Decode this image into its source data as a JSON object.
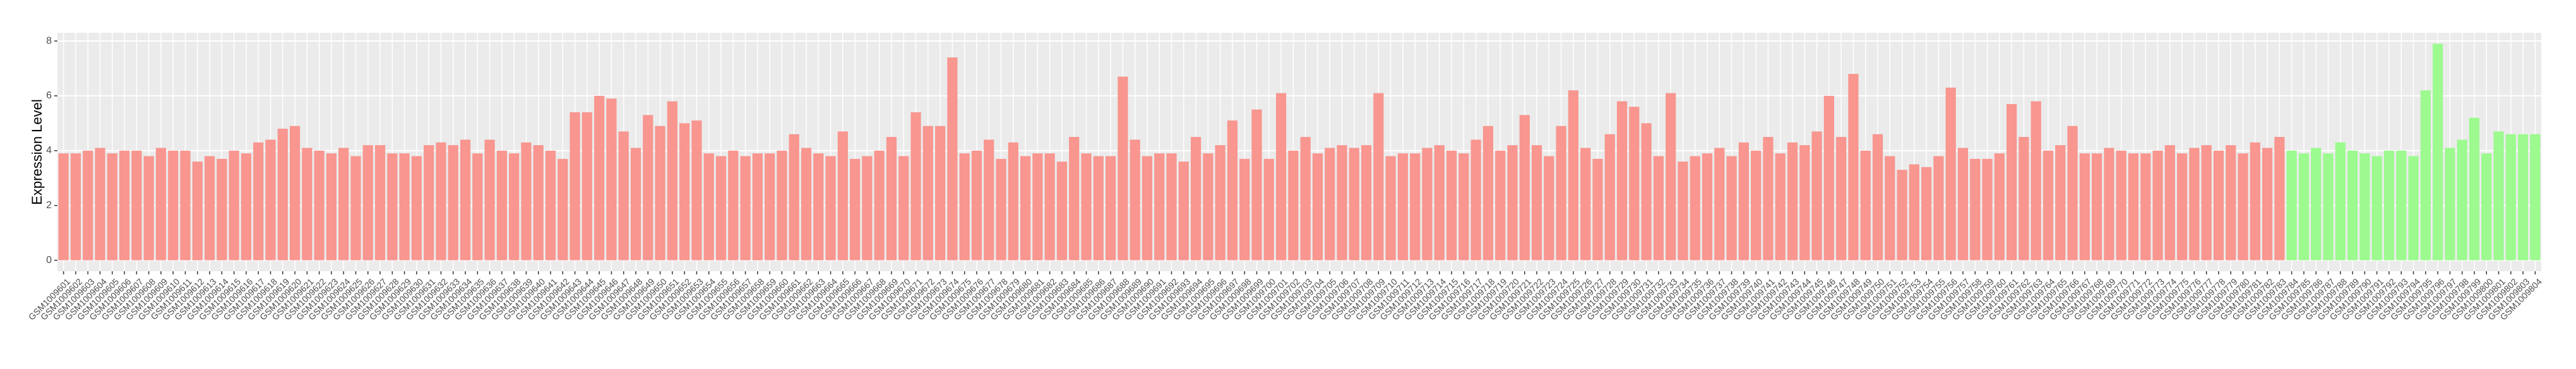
{
  "chart_data": {
    "type": "bar",
    "y_label": "Expression Level",
    "categories": [
      "GSM1009601",
      "GSM1009602",
      "GSM1009603",
      "GSM1009604",
      "GSM1009605",
      "GSM1009606",
      "GSM1009607",
      "GSM1009608",
      "GSM1009609",
      "GSM1009610",
      "GSM1009611",
      "GSM1009612",
      "GSM1009613",
      "GSM1009614",
      "GSM1009615",
      "GSM1009616",
      "GSM1009617",
      "GSM1009618",
      "GSM1009619",
      "GSM1009620",
      "GSM1009621",
      "GSM1009622",
      "GSM1009623",
      "GSM1009624",
      "GSM1009625",
      "GSM1009626",
      "GSM1009627",
      "GSM1009628",
      "GSM1009629",
      "GSM1009630",
      "GSM1009631",
      "GSM1009632",
      "GSM1009633",
      "GSM1009634",
      "GSM1009635",
      "GSM1009636",
      "GSM1009637",
      "GSM1009638",
      "GSM1009639",
      "GSM1009640",
      "GSM1009641",
      "GSM1009642",
      "GSM1009643",
      "GSM1009644",
      "GSM1009645",
      "GSM1009646",
      "GSM1009647",
      "GSM1009648",
      "GSM1009649",
      "GSM1009650",
      "GSM1009651",
      "GSM1009652",
      "GSM1009653",
      "GSM1009654",
      "GSM1009655",
      "GSM1009656",
      "GSM1009657",
      "GSM1009658",
      "GSM1009659",
      "GSM1009660",
      "GSM1009661",
      "GSM1009662",
      "GSM1009663",
      "GSM1009664",
      "GSM1009665",
      "GSM1009666",
      "GSM1009667",
      "GSM1009668",
      "GSM1009669",
      "GSM1009670",
      "GSM1009671",
      "GSM1009672",
      "GSM1009673",
      "GSM1009674",
      "GSM1009675",
      "GSM1009676",
      "GSM1009677",
      "GSM1009678",
      "GSM1009679",
      "GSM1009680",
      "GSM1009681",
      "GSM1009682",
      "GSM1009683",
      "GSM1009684",
      "GSM1009685",
      "GSM1009686",
      "GSM1009687",
      "GSM1009688",
      "GSM1009689",
      "GSM1009690",
      "GSM1009691",
      "GSM1009692",
      "GSM1009693",
      "GSM1009694",
      "GSM1009695",
      "GSM1009696",
      "GSM1009697",
      "GSM1009698",
      "GSM1009699",
      "GSM1009700",
      "GSM1009701",
      "GSM1009702",
      "GSM1009703",
      "GSM1009704",
      "GSM1009705",
      "GSM1009706",
      "GSM1009707",
      "GSM1009708",
      "GSM1009709",
      "GSM1009710",
      "GSM1009711",
      "GSM1009712",
      "GSM1009713",
      "GSM1009714",
      "GSM1009715",
      "GSM1009716",
      "GSM1009717",
      "GSM1009718",
      "GSM1009719",
      "GSM1009720",
      "GSM1009721",
      "GSM1009722",
      "GSM1009723",
      "GSM1009724",
      "GSM1009725",
      "GSM1009726",
      "GSM1009727",
      "GSM1009728",
      "GSM1009729",
      "GSM1009730",
      "GSM1009731",
      "GSM1009732",
      "GSM1009733",
      "GSM1009734",
      "GSM1009735",
      "GSM1009736",
      "GSM1009737",
      "GSM1009738",
      "GSM1009739",
      "GSM1009740",
      "GSM1009741",
      "GSM1009742",
      "GSM1009743",
      "GSM1009744",
      "GSM1009745",
      "GSM1009746",
      "GSM1009747",
      "GSM1009748",
      "GSM1009749",
      "GSM1009750",
      "GSM1009751",
      "GSM1009752",
      "GSM1009753",
      "GSM1009754",
      "GSM1009755",
      "GSM1009756",
      "GSM1009757",
      "GSM1009758",
      "GSM1009759",
      "GSM1009760",
      "GSM1009761",
      "GSM1009762",
      "GSM1009763",
      "GSM1009764",
      "GSM1009765",
      "GSM1009766",
      "GSM1009767",
      "GSM1009768",
      "GSM1009769",
      "GSM1009770",
      "GSM1009771",
      "GSM1009772",
      "GSM1009773",
      "GSM1009774",
      "GSM1009775",
      "GSM1009776",
      "GSM1009777",
      "GSM1009778",
      "GSM1009779",
      "GSM1009780",
      "GSM1009781",
      "GSM1009782",
      "GSM1009783",
      "GSM1009784",
      "GSM1009785",
      "GSM1009786",
      "GSM1009787",
      "GSM1009788",
      "GSM1009789",
      "GSM1009790",
      "GSM1009791",
      "GSM1009792",
      "GSM1009793",
      "GSM1009794",
      "GSM1009795",
      "GSM1009796",
      "GSM1009797",
      "GSM1009798",
      "GSM1009799",
      "GSM1009800",
      "GSM1009801",
      "GSM1009802",
      "GSM1009803",
      "GSM1009804"
    ],
    "series": [
      {
        "color": "#f8968f",
        "values": [
          3.9,
          3.9,
          4.0,
          4.1,
          3.9,
          4.0,
          4.0,
          3.8,
          4.1,
          4.0,
          4.0,
          3.6,
          3.8,
          3.7,
          4.0,
          3.9,
          4.3,
          4.4,
          4.8,
          4.9,
          4.1,
          4.0,
          3.9,
          4.1,
          3.8,
          4.2,
          4.2,
          3.9,
          3.9,
          3.8,
          4.2,
          4.3,
          4.2,
          4.4,
          3.9,
          4.4,
          4.0,
          3.9,
          4.3,
          4.2,
          4.0,
          3.7,
          5.4,
          5.4,
          6.0,
          5.9,
          4.7,
          4.1,
          5.3,
          4.9,
          5.8,
          5.0,
          5.1,
          3.9,
          3.8,
          4.0,
          3.8,
          3.9,
          3.9,
          4.0,
          4.6,
          4.1,
          3.9,
          3.8,
          4.7,
          3.7,
          3.8,
          4.0,
          4.5,
          3.8,
          5.4,
          4.9,
          4.9,
          7.4,
          3.9,
          4.0,
          4.4,
          3.7,
          4.3,
          3.8,
          3.9,
          3.9,
          3.6,
          4.5,
          3.9,
          3.8,
          3.8,
          6.7,
          4.4,
          3.8,
          3.9,
          3.9,
          3.6,
          4.5,
          3.9,
          4.2,
          5.1,
          3.7,
          5.5,
          3.7,
          6.1,
          4.0,
          4.5,
          3.9,
          4.1,
          4.2,
          4.1,
          4.2,
          6.1,
          3.8,
          3.9,
          3.9,
          4.1,
          4.2,
          4.0,
          3.9,
          4.4,
          4.9,
          4.0,
          4.2,
          5.3,
          4.2,
          3.8,
          4.9,
          6.2,
          4.1,
          3.7,
          4.6,
          5.8,
          5.6,
          5.0,
          3.8,
          6.1,
          3.6,
          3.8,
          3.9,
          4.1,
          3.8,
          4.3,
          4.0,
          4.5,
          3.9,
          4.3,
          4.2,
          4.7,
          6.0,
          4.5,
          6.8,
          4.0,
          4.6,
          3.8,
          3.3,
          3.5,
          3.4,
          3.8,
          6.3,
          4.1,
          3.7,
          3.7,
          3.9,
          5.7,
          4.5,
          5.8,
          4.0,
          4.2,
          4.9,
          3.9,
          3.9,
          4.1,
          4.0,
          3.9,
          3.9,
          4.0,
          4.2,
          3.9,
          4.1,
          4.2,
          4.0,
          4.2,
          3.9,
          4.3,
          4.1,
          4.5,
          null,
          null,
          null,
          null,
          null,
          null,
          null,
          null,
          null,
          null,
          null,
          null,
          null,
          null,
          null,
          null,
          null,
          null,
          null,
          null,
          null
        ]
      },
      {
        "color": "#9cfa8f",
        "values": [
          null,
          null,
          null,
          null,
          null,
          null,
          null,
          null,
          null,
          null,
          null,
          null,
          null,
          null,
          null,
          null,
          null,
          null,
          null,
          null,
          null,
          null,
          null,
          null,
          null,
          null,
          null,
          null,
          null,
          null,
          null,
          null,
          null,
          null,
          null,
          null,
          null,
          null,
          null,
          null,
          null,
          null,
          null,
          null,
          null,
          null,
          null,
          null,
          null,
          null,
          null,
          null,
          null,
          null,
          null,
          null,
          null,
          null,
          null,
          null,
          null,
          null,
          null,
          null,
          null,
          null,
          null,
          null,
          null,
          null,
          null,
          null,
          null,
          null,
          null,
          null,
          null,
          null,
          null,
          null,
          null,
          null,
          null,
          null,
          null,
          null,
          null,
          null,
          null,
          null,
          null,
          null,
          null,
          null,
          null,
          null,
          null,
          null,
          null,
          null,
          null,
          null,
          null,
          null,
          null,
          null,
          null,
          null,
          null,
          null,
          null,
          null,
          null,
          null,
          null,
          null,
          null,
          null,
          null,
          null,
          null,
          null,
          null,
          null,
          null,
          null,
          null,
          null,
          null,
          null,
          null,
          null,
          null,
          null,
          null,
          null,
          null,
          null,
          null,
          null,
          null,
          null,
          null,
          null,
          null,
          null,
          null,
          null,
          null,
          null,
          null,
          null,
          null,
          null,
          null,
          null,
          null,
          null,
          null,
          null,
          null,
          null,
          null,
          null,
          null,
          null,
          null,
          null,
          null,
          null,
          null,
          null,
          null,
          null,
          null,
          null,
          null,
          null,
          null,
          null,
          null,
          null,
          null,
          4.0,
          3.9,
          4.1,
          3.9,
          4.3,
          4.0,
          3.9,
          3.8,
          4.0,
          4.0,
          3.8,
          6.2,
          7.9,
          4.1,
          4.4,
          5.2,
          3.9,
          4.7,
          4.6,
          4.6,
          4.6
        ]
      }
    ],
    "ylim": [
      -0.4,
      8.3
    ],
    "yticks": [
      0,
      2,
      4,
      6,
      8
    ],
    "grid": true
  }
}
